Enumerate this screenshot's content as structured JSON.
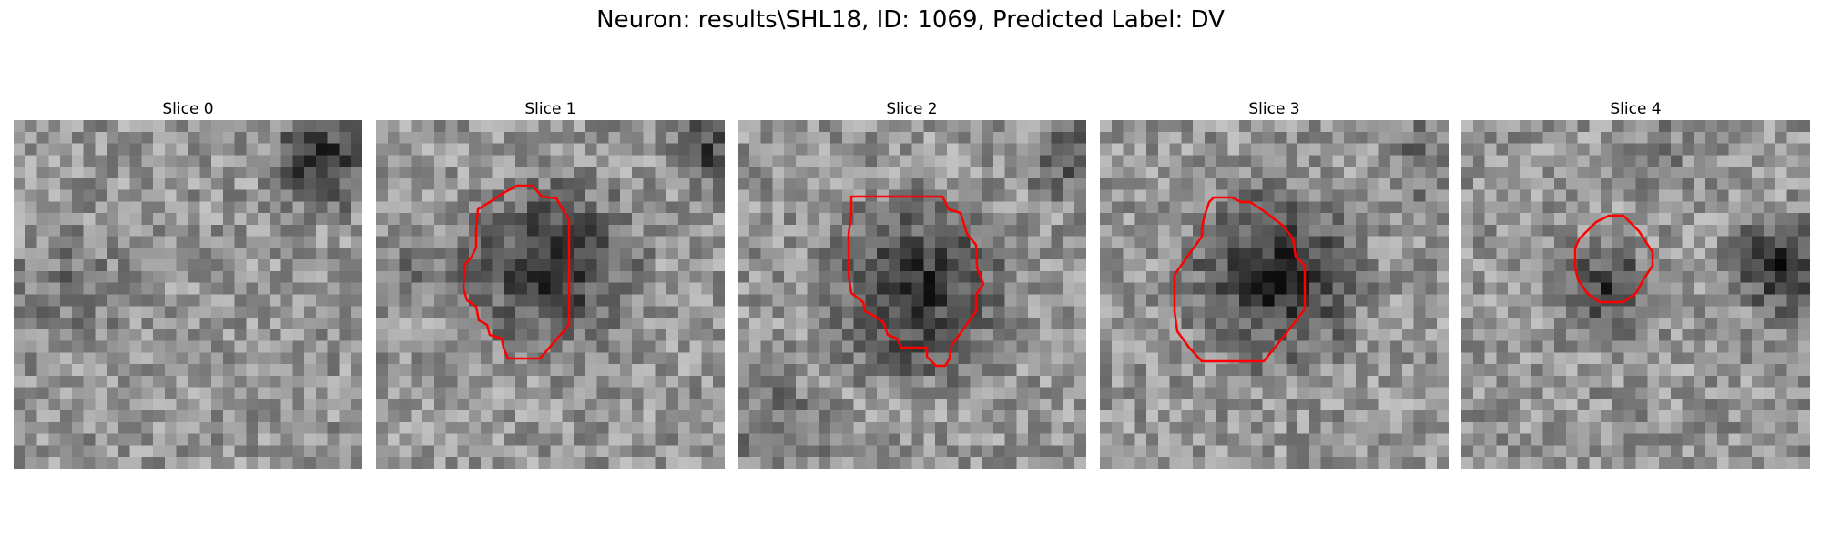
{
  "figure": {
    "title": "Neuron: results\\SHL18, ID: 1069, Predicted Label: DV",
    "contour_color": "#ff0000",
    "colormap": "gray",
    "panels": [
      {
        "title": "Slice 0",
        "contour": null
      },
      {
        "title": "Slice 1",
        "contour": "ellipse-large-irregular"
      },
      {
        "title": "Slice 2",
        "contour": "ellipse-large-irregular"
      },
      {
        "title": "Slice 3",
        "contour": "octagon-large"
      },
      {
        "title": "Slice 4",
        "contour": "octagon-small"
      }
    ]
  }
}
